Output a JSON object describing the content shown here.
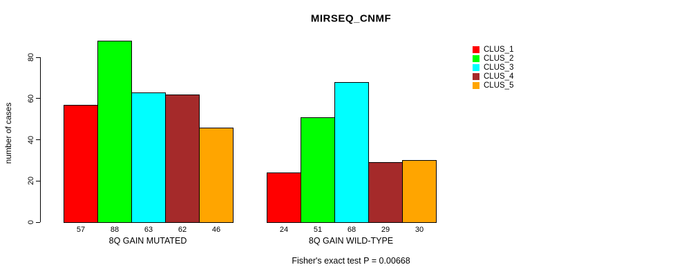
{
  "chart_data": {
    "type": "bar",
    "title": "MIRSEQ_CNMF",
    "ylabel": "number of cases",
    "ylim": [
      0,
      80
    ],
    "yticks": [
      0,
      20,
      40,
      60,
      80
    ],
    "grid": false,
    "legend_position": "right-outside",
    "categories": [
      "8Q GAIN MUTATED",
      "8Q GAIN WILD-TYPE"
    ],
    "series": [
      {
        "name": "CLUS_1",
        "color": "#FF0000",
        "values": [
          57,
          24
        ]
      },
      {
        "name": "CLUS_2",
        "color": "#00FF00",
        "values": [
          88,
          51
        ]
      },
      {
        "name": "CLUS_3",
        "color": "#00FFFF",
        "values": [
          63,
          68
        ]
      },
      {
        "name": "CLUS_4",
        "color": "#A52A2A",
        "values": [
          62,
          29
        ]
      },
      {
        "name": "CLUS_5",
        "color": "#FFA500",
        "values": [
          46,
          30
        ]
      }
    ],
    "bar_value_labels": {
      "8Q GAIN MUTATED": [
        57,
        88,
        63,
        62,
        46
      ],
      "8Q GAIN WILD-TYPE": [
        24,
        51,
        68,
        29,
        30
      ]
    },
    "footnote": "Fisher's exact test P = 0.00668"
  }
}
